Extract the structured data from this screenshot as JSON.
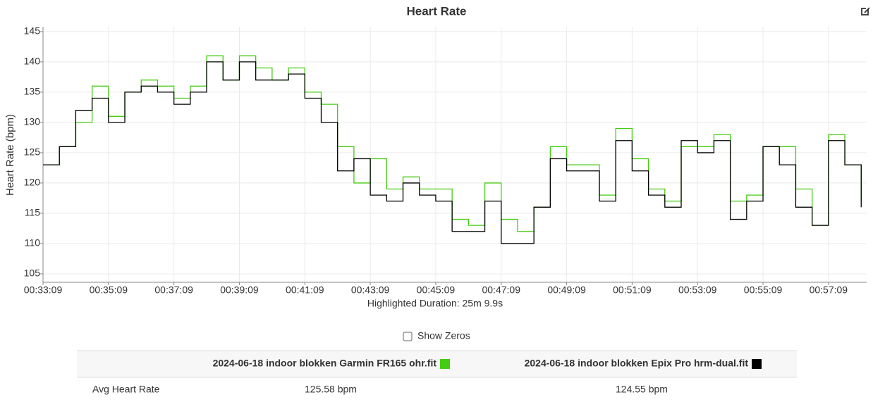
{
  "chart_data": {
    "type": "line",
    "title": "Heart Rate",
    "ylabel": "Heart Rate (bpm)",
    "note": "Highlighted Duration: 25m 9.9s",
    "x": [
      "00:33:09",
      "00:33:39",
      "00:34:09",
      "00:34:39",
      "00:35:09",
      "00:35:39",
      "00:36:09",
      "00:36:39",
      "00:37:09",
      "00:37:39",
      "00:38:09",
      "00:38:39",
      "00:39:09",
      "00:39:39",
      "00:40:09",
      "00:40:39",
      "00:41:09",
      "00:41:39",
      "00:42:09",
      "00:42:39",
      "00:43:09",
      "00:43:39",
      "00:44:09",
      "00:44:39",
      "00:45:09",
      "00:45:39",
      "00:46:09",
      "00:46:39",
      "00:47:09",
      "00:47:39",
      "00:48:09",
      "00:48:39",
      "00:49:09",
      "00:49:39",
      "00:50:09",
      "00:50:39",
      "00:51:09",
      "00:51:39",
      "00:52:09",
      "00:52:39",
      "00:53:09",
      "00:53:39",
      "00:54:09",
      "00:54:39",
      "00:55:09",
      "00:55:39",
      "00:56:09",
      "00:56:39",
      "00:57:09",
      "00:57:39",
      "00:58:09"
    ],
    "series": [
      {
        "name": "2024-06-18 indoor blokken Garmin FR165 ohr.fit",
        "color": "#44cc11",
        "values": [
          123,
          126,
          130,
          136,
          131,
          135,
          137,
          136,
          134,
          136,
          141,
          137,
          141,
          139,
          137,
          139,
          135,
          133,
          126,
          120,
          124,
          119,
          121,
          119,
          119,
          114,
          113,
          120,
          114,
          112,
          116,
          126,
          123,
          123,
          118,
          129,
          124,
          119,
          117,
          126,
          126,
          128,
          117,
          118,
          126,
          126,
          119,
          113,
          128,
          123,
          117
        ]
      },
      {
        "name": "2024-06-18 indoor blokken Epix Pro hrm-dual.fit",
        "color": "#000000",
        "values": [
          123,
          126,
          132,
          134,
          130,
          135,
          136,
          135,
          133,
          135,
          140,
          137,
          140,
          137,
          137,
          138,
          134,
          130,
          122,
          124,
          118,
          117,
          120,
          118,
          117,
          112,
          112,
          117,
          110,
          110,
          116,
          124,
          122,
          122,
          117,
          127,
          122,
          118,
          116,
          127,
          125,
          127,
          114,
          117,
          126,
          123,
          116,
          113,
          127,
          123,
          116
        ]
      }
    ],
    "xlim": [
      "00:33:09",
      "00:58:19"
    ],
    "xticks": [
      "00:33:09",
      "00:35:09",
      "00:37:09",
      "00:39:09",
      "00:41:09",
      "00:43:09",
      "00:45:09",
      "00:47:09",
      "00:49:09",
      "00:51:09",
      "00:53:09",
      "00:55:09",
      "00:57:09"
    ],
    "ylim": [
      103.6,
      145.8
    ],
    "yticks": [
      105,
      110,
      115,
      120,
      125,
      130,
      135,
      140,
      145
    ],
    "grid": true,
    "step": true
  },
  "controls": {
    "show_zeros": {
      "label": "Show Zeros",
      "checked": false
    }
  },
  "table": {
    "rows": [
      [
        "Avg Heart Rate",
        "125.58 bpm",
        "124.55 bpm"
      ]
    ]
  }
}
